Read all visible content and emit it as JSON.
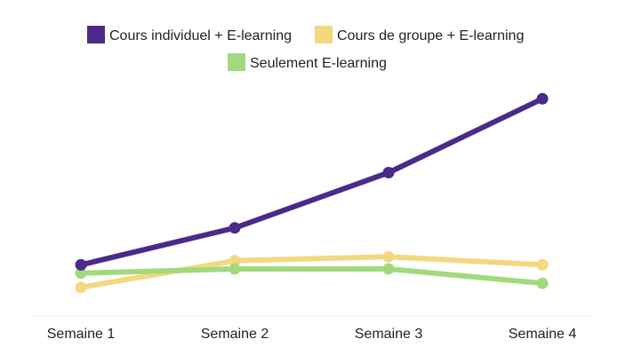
{
  "chart_data": {
    "type": "line",
    "title": "",
    "xlabel": "",
    "ylabel": "",
    "categories": [
      "Semaine 1",
      "Semaine 2",
      "Semaine 3",
      "Semaine 4"
    ],
    "ylim": [
      0,
      100
    ],
    "grid": false,
    "legend_position": "top-center",
    "series": [
      {
        "name": "Cours individuel + E-learning",
        "color": "#4b2a8a",
        "values": [
          18,
          36,
          63,
          99
        ]
      },
      {
        "name": "Cours de groupe + E-learning",
        "color": "#f3d880",
        "values": [
          7,
          20,
          22,
          18
        ]
      },
      {
        "name": "Seulement E-learning",
        "color": "#a3d97e",
        "values": [
          14,
          16,
          16,
          9
        ]
      }
    ]
  }
}
